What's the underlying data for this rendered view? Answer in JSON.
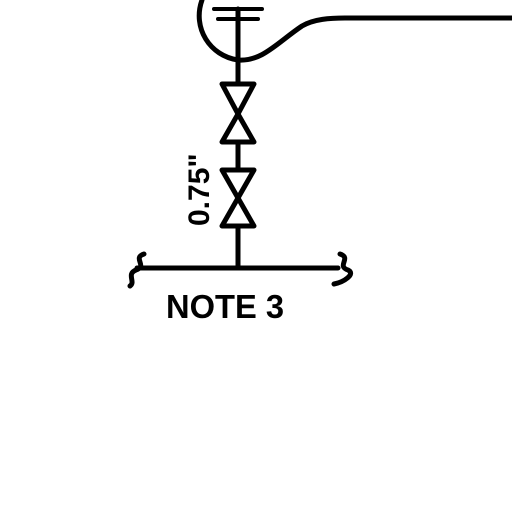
{
  "diagram": {
    "size_label": "0.75\"",
    "note_label": "NOTE 3"
  },
  "colors": {
    "ink": "#000000",
    "background": "#ffffff"
  }
}
